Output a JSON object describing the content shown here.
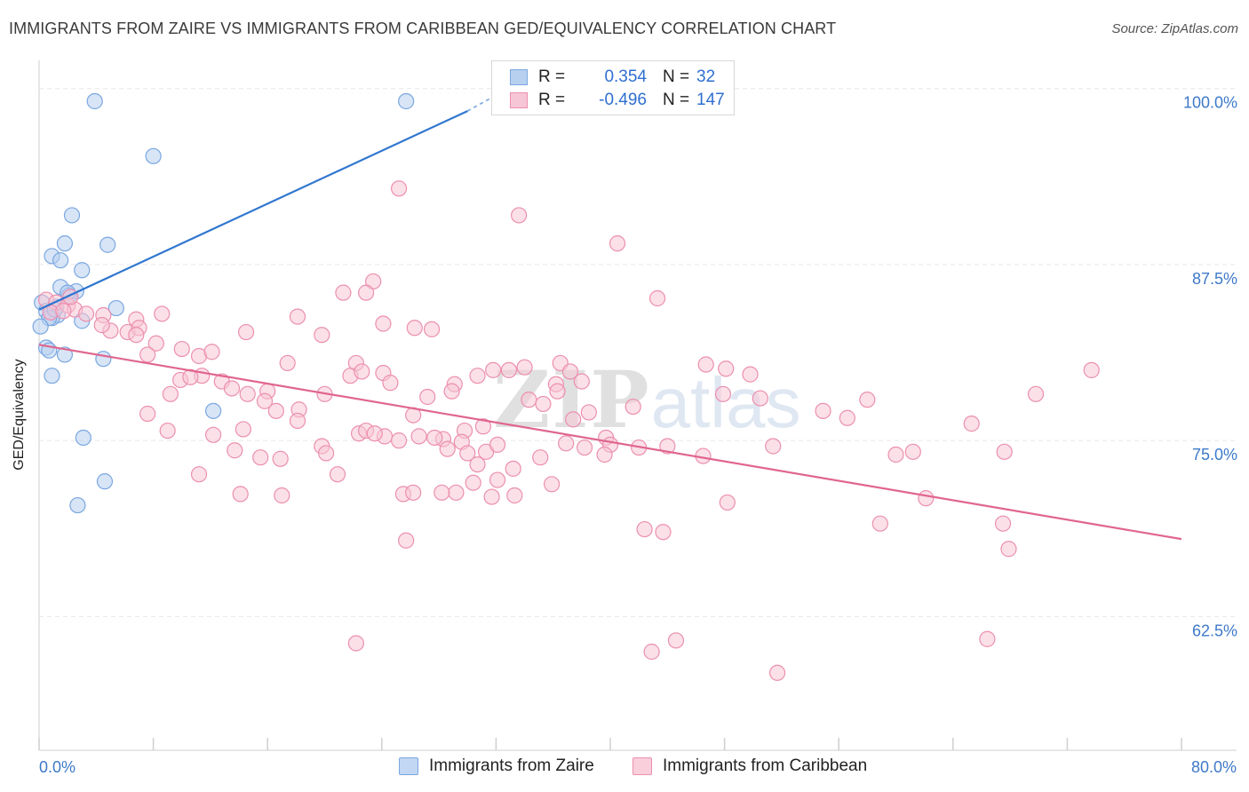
{
  "title": "IMMIGRANTS FROM ZAIRE VS IMMIGRANTS FROM CARIBBEAN GED/EQUIVALENCY CORRELATION CHART",
  "source": "Source: ZipAtlas.com",
  "watermark": {
    "zip": "ZIP",
    "atlas": "atlas"
  },
  "legend": {
    "r_label": "R =",
    "n_label": "N =",
    "rows": [
      {
        "r": "0.354",
        "n": "32",
        "color": "#7aa7e0",
        "fill": "#b8d0f0"
      },
      {
        "r": "-0.496",
        "n": "147",
        "color": "#ec8fae",
        "fill": "#f7c6d6"
      }
    ]
  },
  "chart_data": {
    "type": "scatter",
    "title": "IMMIGRANTS FROM ZAIRE VS IMMIGRANTS FROM CARIBBEAN GED/EQUIVALENCY CORRELATION CHART",
    "xlabel": "",
    "ylabel": "GED/Equivalency",
    "xlim": [
      0,
      80
    ],
    "ylim": [
      53,
      102
    ],
    "x_tick_labels": [
      "0.0%",
      "80.0%"
    ],
    "y_tick_labels": [
      "100.0%",
      "87.5%",
      "75.0%",
      "62.5%"
    ],
    "y_ticks": [
      100,
      87.5,
      75,
      62.5
    ],
    "grid": true,
    "legend_position": "top-center",
    "series": [
      {
        "name": "Immigrants from Zaire",
        "color": "#7aa7e0",
        "fill": "#b8d0f0",
        "line_color": "#2f76cf",
        "trend": {
          "x": [
            0.0,
            30.0
          ],
          "y": [
            84.3,
            98.4
          ],
          "dashed_to": [
            31.6,
            99.3
          ]
        },
        "points": [
          [
            3.9,
            99.1
          ],
          [
            25.7,
            99.1
          ],
          [
            8.0,
            95.2
          ],
          [
            2.3,
            91.0
          ],
          [
            4.8,
            88.9
          ],
          [
            1.8,
            89.0
          ],
          [
            0.9,
            88.1
          ],
          [
            1.5,
            87.8
          ],
          [
            3.0,
            87.1
          ],
          [
            1.5,
            85.9
          ],
          [
            2.6,
            85.6
          ],
          [
            2.1,
            85.3
          ],
          [
            0.2,
            84.8
          ],
          [
            1.2,
            84.5
          ],
          [
            0.5,
            84.2
          ],
          [
            5.4,
            84.4
          ],
          [
            1.3,
            83.9
          ],
          [
            0.9,
            83.7
          ],
          [
            3.0,
            83.5
          ],
          [
            0.7,
            83.7
          ],
          [
            0.1,
            83.1
          ],
          [
            0.5,
            81.6
          ],
          [
            0.7,
            81.4
          ],
          [
            1.8,
            81.1
          ],
          [
            4.5,
            80.8
          ],
          [
            0.9,
            79.6
          ],
          [
            12.2,
            77.1
          ],
          [
            3.1,
            75.2
          ],
          [
            4.6,
            72.1
          ],
          [
            2.7,
            70.4
          ],
          [
            2.0,
            85.5
          ],
          [
            1.1,
            84.3
          ]
        ]
      },
      {
        "name": "Immigrants from Caribbean",
        "color": "#ec8fae",
        "fill": "#f7c6d6",
        "line_color": "#e0668f",
        "trend": {
          "x": [
            0.0,
            80.0
          ],
          "y": [
            81.8,
            68.0
          ]
        },
        "points": [
          [
            0.5,
            85.0
          ],
          [
            1.2,
            84.8
          ],
          [
            2.0,
            84.6
          ],
          [
            2.5,
            84.3
          ],
          [
            3.3,
            84.0
          ],
          [
            0.8,
            84.1
          ],
          [
            1.7,
            84.2
          ],
          [
            4.5,
            83.9
          ],
          [
            6.8,
            83.6
          ],
          [
            2.2,
            85.2
          ],
          [
            8.6,
            84.0
          ],
          [
            5.0,
            82.8
          ],
          [
            6.2,
            82.7
          ],
          [
            7.0,
            83.0
          ],
          [
            8.2,
            81.9
          ],
          [
            10.0,
            81.5
          ],
          [
            11.2,
            81.0
          ],
          [
            4.4,
            83.2
          ],
          [
            6.8,
            82.5
          ],
          [
            7.6,
            81.1
          ],
          [
            9.9,
            79.3
          ],
          [
            12.1,
            81.3
          ],
          [
            14.5,
            82.7
          ],
          [
            17.4,
            80.5
          ],
          [
            18.1,
            83.8
          ],
          [
            19.8,
            82.5
          ],
          [
            22.2,
            80.5
          ],
          [
            16.0,
            78.5
          ],
          [
            11.4,
            79.6
          ],
          [
            14.6,
            78.3
          ],
          [
            15.8,
            77.8
          ],
          [
            12.8,
            79.2
          ],
          [
            13.5,
            78.7
          ],
          [
            16.6,
            77.1
          ],
          [
            18.2,
            77.2
          ],
          [
            20.0,
            78.3
          ],
          [
            21.8,
            79.6
          ],
          [
            22.6,
            79.9
          ],
          [
            24.1,
            79.8
          ],
          [
            24.1,
            83.3
          ],
          [
            23.4,
            86.3
          ],
          [
            22.9,
            85.5
          ],
          [
            21.3,
            85.5
          ],
          [
            26.3,
            83.0
          ],
          [
            27.5,
            82.9
          ],
          [
            25.2,
            92.9
          ],
          [
            24.6,
            79.1
          ],
          [
            30.7,
            79.6
          ],
          [
            31.8,
            80.0
          ],
          [
            32.9,
            80.0
          ],
          [
            34.0,
            80.2
          ],
          [
            36.5,
            80.5
          ],
          [
            37.2,
            79.9
          ],
          [
            38.0,
            79.2
          ],
          [
            36.2,
            79.0
          ],
          [
            29.1,
            79.0
          ],
          [
            28.9,
            78.5
          ],
          [
            27.2,
            78.1
          ],
          [
            26.2,
            76.8
          ],
          [
            29.8,
            75.7
          ],
          [
            31.1,
            76.0
          ],
          [
            28.3,
            75.1
          ],
          [
            29.6,
            74.9
          ],
          [
            34.3,
            77.9
          ],
          [
            35.3,
            77.6
          ],
          [
            36.3,
            78.5
          ],
          [
            37.4,
            76.5
          ],
          [
            38.5,
            77.0
          ],
          [
            39.7,
            75.2
          ],
          [
            40.0,
            74.7
          ],
          [
            41.6,
            77.4
          ],
          [
            46.7,
            80.4
          ],
          [
            48.1,
            80.1
          ],
          [
            49.8,
            79.7
          ],
          [
            47.9,
            78.3
          ],
          [
            50.5,
            78.0
          ],
          [
            54.9,
            77.1
          ],
          [
            56.6,
            76.6
          ],
          [
            58.0,
            77.9
          ],
          [
            60.0,
            74.0
          ],
          [
            61.2,
            74.2
          ],
          [
            65.3,
            76.2
          ],
          [
            67.6,
            74.2
          ],
          [
            69.8,
            78.3
          ],
          [
            73.7,
            80.0
          ],
          [
            43.3,
            85.1
          ],
          [
            40.5,
            89.0
          ],
          [
            33.6,
            91.0
          ],
          [
            9.0,
            75.7
          ],
          [
            12.2,
            75.4
          ],
          [
            13.7,
            74.3
          ],
          [
            11.2,
            72.6
          ],
          [
            7.6,
            76.9
          ],
          [
            9.2,
            78.3
          ],
          [
            10.6,
            79.5
          ],
          [
            14.3,
            75.8
          ],
          [
            15.5,
            73.8
          ],
          [
            16.9,
            73.7
          ],
          [
            18.1,
            76.4
          ],
          [
            19.8,
            74.6
          ],
          [
            20.1,
            74.1
          ],
          [
            20.9,
            72.6
          ],
          [
            17.0,
            71.1
          ],
          [
            14.1,
            71.2
          ],
          [
            22.4,
            75.5
          ],
          [
            22.9,
            75.7
          ],
          [
            24.2,
            75.3
          ],
          [
            23.5,
            75.5
          ],
          [
            25.2,
            75.0
          ],
          [
            26.6,
            75.3
          ],
          [
            27.7,
            75.2
          ],
          [
            28.6,
            74.4
          ],
          [
            30.0,
            74.1
          ],
          [
            30.7,
            73.3
          ],
          [
            31.3,
            74.2
          ],
          [
            32.1,
            74.7
          ],
          [
            33.2,
            73.0
          ],
          [
            35.1,
            73.8
          ],
          [
            36.9,
            74.8
          ],
          [
            38.2,
            74.5
          ],
          [
            39.6,
            74.0
          ],
          [
            42.0,
            74.5
          ],
          [
            44.0,
            74.6
          ],
          [
            46.5,
            73.9
          ],
          [
            51.4,
            74.6
          ],
          [
            25.5,
            71.2
          ],
          [
            26.2,
            71.3
          ],
          [
            29.2,
            71.3
          ],
          [
            30.4,
            72.0
          ],
          [
            31.7,
            71.0
          ],
          [
            33.3,
            71.1
          ],
          [
            35.9,
            71.9
          ],
          [
            32.1,
            72.2
          ],
          [
            28.2,
            71.3
          ],
          [
            42.4,
            68.7
          ],
          [
            43.7,
            68.5
          ],
          [
            25.7,
            67.9
          ],
          [
            48.2,
            70.6
          ],
          [
            58.9,
            69.1
          ],
          [
            62.1,
            70.9
          ],
          [
            67.5,
            69.1
          ],
          [
            67.9,
            67.3
          ],
          [
            66.4,
            60.9
          ],
          [
            42.9,
            60.0
          ],
          [
            44.6,
            60.8
          ],
          [
            22.2,
            60.6
          ],
          [
            51.7,
            58.5
          ]
        ]
      }
    ]
  },
  "bottom_legend": [
    {
      "label": "Immigrants from Zaire",
      "color": "#7aa7e0",
      "fill": "#c2d7f3"
    },
    {
      "label": "Immigrants from Caribbean",
      "color": "#ec8fae",
      "fill": "#f9cfdc"
    }
  ]
}
